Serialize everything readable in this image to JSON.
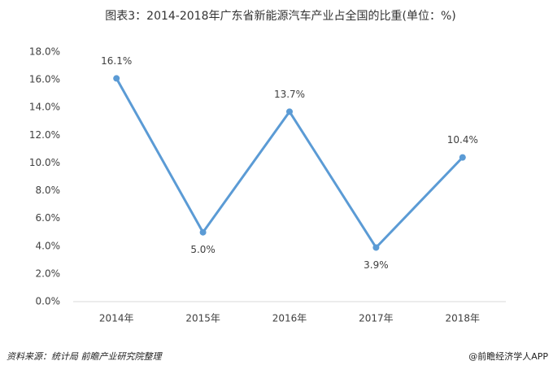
{
  "chart_data": {
    "type": "line",
    "title": "图表3：2014-2018年广东省新能源汽车产业占全国的比重(单位：%)",
    "categories": [
      "2014年",
      "2015年",
      "2016年",
      "2017年",
      "2018年"
    ],
    "values": [
      16.1,
      5.0,
      13.7,
      3.9,
      10.4
    ],
    "value_labels": [
      "16.1%",
      "5.0%",
      "13.7%",
      "3.9%",
      "10.4%"
    ],
    "color": "#5b9bd5",
    "ylim": [
      0,
      18
    ],
    "yticks": [
      {
        "value": 0,
        "label": "0.0%"
      },
      {
        "value": 2,
        "label": "2.0%"
      },
      {
        "value": 4,
        "label": "4.0%"
      },
      {
        "value": 6,
        "label": "6.0%"
      },
      {
        "value": 8,
        "label": "8.0%"
      },
      {
        "value": 10,
        "label": "10.0%"
      },
      {
        "value": 12,
        "label": "12.0%"
      },
      {
        "value": 14,
        "label": "14.0%"
      },
      {
        "value": 16,
        "label": "16.0%"
      },
      {
        "value": 18,
        "label": "18.0%"
      }
    ],
    "grid": false,
    "source": "资料来源：统计局 前瞻产业研究院整理",
    "footer": "@前瞻经济学人APP"
  }
}
